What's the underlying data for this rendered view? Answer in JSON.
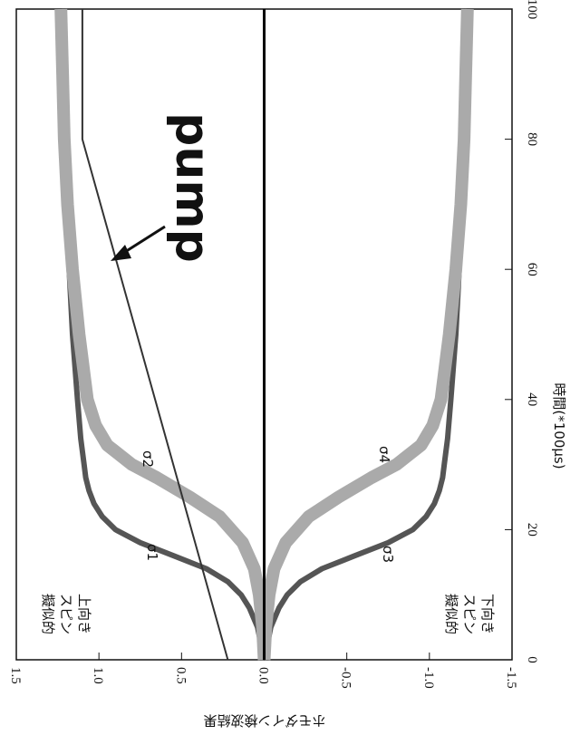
{
  "chart_data": {
    "type": "line",
    "orientation": "rotated-90-clockwise",
    "xlabel": "時間(*100μs)",
    "ylabel": "ホモダイン検波結果",
    "xlim": [
      0,
      100
    ],
    "ylim": [
      -1.5,
      1.5
    ],
    "x_ticks": [
      "0",
      "20",
      "40",
      "60",
      "80",
      "100"
    ],
    "y_ticks": [
      "1.5",
      "1.0",
      "0.5",
      "0.0",
      "-0.5",
      "-1.0",
      "-1.5"
    ],
    "grid": false,
    "series": [
      {
        "name": "σ1",
        "color": "#555555",
        "x": [
          0,
          5,
          8,
          10,
          12,
          14,
          16,
          18,
          20,
          22,
          24,
          26,
          28,
          30,
          34,
          40,
          50,
          60,
          70,
          80,
          90,
          100
        ],
        "y": [
          0.0,
          0.04,
          0.09,
          0.14,
          0.22,
          0.35,
          0.55,
          0.75,
          0.9,
          0.98,
          1.03,
          1.06,
          1.08,
          1.09,
          1.11,
          1.13,
          1.16,
          1.18,
          1.2,
          1.21,
          1.22,
          1.23
        ]
      },
      {
        "name": "σ2",
        "color": "#aaaaaa",
        "x": [
          0,
          5,
          10,
          14,
          18,
          22,
          25,
          28,
          30,
          33,
          36,
          40,
          50,
          60,
          70,
          80,
          90,
          100
        ],
        "y": [
          0.0,
          0.01,
          0.03,
          0.06,
          0.13,
          0.27,
          0.45,
          0.65,
          0.8,
          0.95,
          1.02,
          1.07,
          1.12,
          1.16,
          1.19,
          1.21,
          1.22,
          1.23
        ]
      },
      {
        "name": "σ3",
        "color": "#555555",
        "x": [
          0,
          5,
          8,
          10,
          12,
          14,
          16,
          18,
          20,
          22,
          24,
          26,
          28,
          30,
          34,
          40,
          50,
          60,
          70,
          80,
          90,
          100
        ],
        "y": [
          0.0,
          -0.04,
          -0.09,
          -0.14,
          -0.22,
          -0.35,
          -0.55,
          -0.75,
          -0.9,
          -0.98,
          -1.03,
          -1.06,
          -1.08,
          -1.09,
          -1.11,
          -1.13,
          -1.16,
          -1.18,
          -1.2,
          -1.21,
          -1.22,
          -1.23
        ]
      },
      {
        "name": "σ4",
        "color": "#aaaaaa",
        "x": [
          0,
          5,
          10,
          14,
          18,
          22,
          25,
          28,
          30,
          33,
          36,
          40,
          50,
          60,
          70,
          80,
          90,
          100
        ],
        "y": [
          0.0,
          -0.01,
          -0.03,
          -0.06,
          -0.13,
          -0.27,
          -0.45,
          -0.65,
          -0.8,
          -0.95,
          -1.02,
          -1.07,
          -1.12,
          -1.16,
          -1.19,
          -1.21,
          -1.22,
          -1.23
        ]
      },
      {
        "name": "pump",
        "color": "#333333",
        "x": [
          0,
          80,
          100
        ],
        "y": [
          0.22,
          1.1,
          1.1
        ]
      },
      {
        "name": "",
        "color": "#000000",
        "x": [
          0,
          100
        ],
        "y": [
          0,
          0
        ]
      }
    ],
    "annotations": {
      "pump": "pump",
      "sigma1": "σ1",
      "sigma2": "σ2",
      "sigma3": "σ3",
      "sigma4": "σ4",
      "spin_up": [
        "擬似的",
        "スピン",
        "上向き"
      ],
      "spin_down": [
        "擬似的",
        "スピン",
        "下向き"
      ]
    }
  }
}
